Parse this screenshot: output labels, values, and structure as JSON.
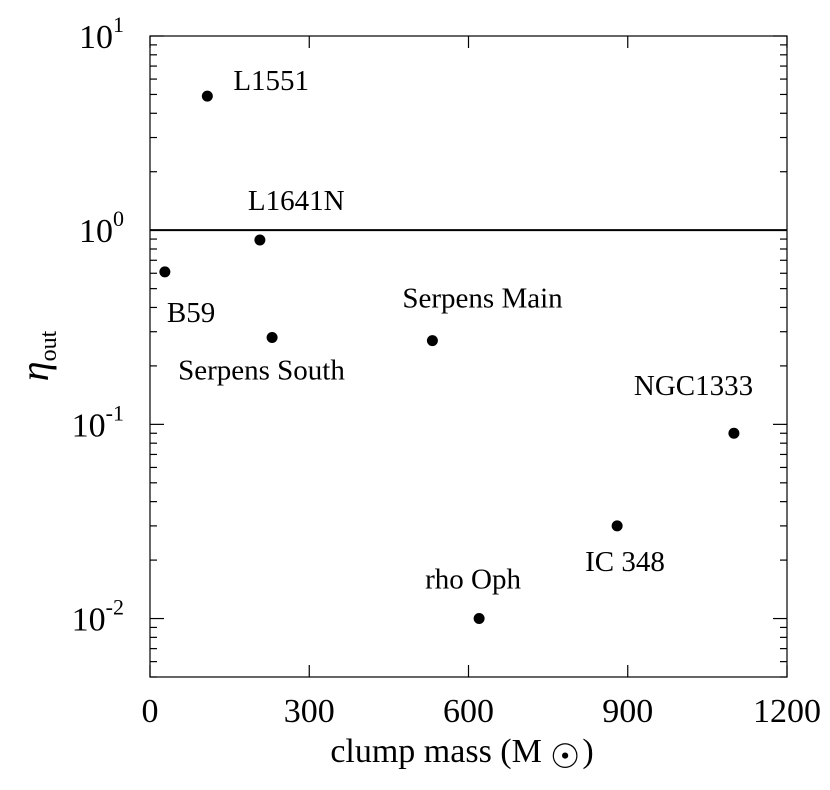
{
  "chart_data": {
    "type": "scatter",
    "xlabel": "clump mass (M",
    "xlabel_unit_symbol": "sun-symbol",
    "xlabel_close": ")",
    "ylabel_symbol": "η",
    "ylabel_sub": "out",
    "xlim": [
      0,
      1200
    ],
    "ylim": [
      0.005,
      10
    ],
    "y_scale": "log",
    "grid": false,
    "x_ticks": [
      {
        "value": 0,
        "label": "0"
      },
      {
        "value": 300,
        "label": "300"
      },
      {
        "value": 600,
        "label": "600"
      },
      {
        "value": 900,
        "label": "900"
      },
      {
        "value": 1200,
        "label": "1200"
      }
    ],
    "y_ticks": [
      {
        "value": 0.01,
        "base": "10",
        "exp": "-2"
      },
      {
        "value": 0.1,
        "base": "10",
        "exp": "-1"
      },
      {
        "value": 1,
        "base": "10",
        "exp": "0"
      },
      {
        "value": 10,
        "base": "10",
        "exp": "1"
      }
    ],
    "reference_line": {
      "y": 1
    },
    "points": [
      {
        "name": "L1551",
        "x": 108,
        "y": 4.9
      },
      {
        "name": "L1641N",
        "x": 207,
        "y": 0.89
      },
      {
        "name": "B59",
        "x": 28,
        "y": 0.61
      },
      {
        "name": "Serpens South",
        "x": 230,
        "y": 0.28
      },
      {
        "name": "Serpens Main",
        "x": 532,
        "y": 0.27
      },
      {
        "name": "NGC1333",
        "x": 1100,
        "y": 0.09
      },
      {
        "name": "IC 348",
        "x": 880,
        "y": 0.03
      },
      {
        "name": "rho Oph",
        "x": 620,
        "y": 0.01
      }
    ]
  }
}
